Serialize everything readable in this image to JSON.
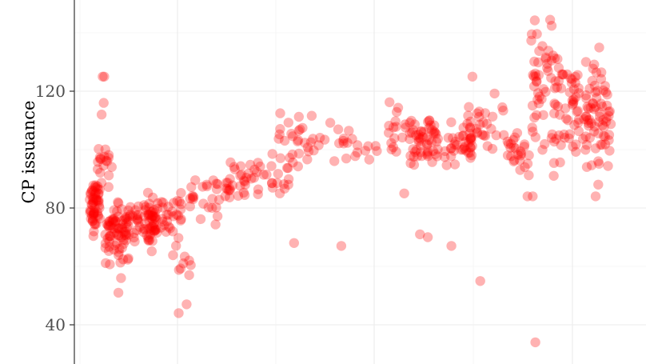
{
  "chart_data": {
    "type": "scatter",
    "title": "",
    "xlabel": "",
    "ylabel": "CP issuance",
    "ylim": [
      28,
      150
    ],
    "xlim": [
      0,
      100
    ],
    "y_ticks": [
      40,
      80,
      120
    ],
    "grid": true,
    "point_color": "#ff0000",
    "point_opacity": 0.3,
    "series": [
      {
        "name": "CP issuance",
        "clusters": [
          {
            "x": [
              0.0,
              2.0
            ],
            "y": [
              69,
              92
            ],
            "n": 55
          },
          {
            "x": [
              1.5,
              4.5
            ],
            "y": [
              84,
              107
            ],
            "n": 18
          },
          {
            "x": [
              3.0,
              7.5
            ],
            "y": [
              58,
              86
            ],
            "n": 70
          },
          {
            "x": [
              6.5,
              12.5
            ],
            "y": [
              63,
              86
            ],
            "n": 45
          },
          {
            "x": [
              10.5,
              17.5
            ],
            "y": [
              62,
              90
            ],
            "n": 60
          },
          {
            "x": [
              16.5,
              19.5
            ],
            "y": [
              56,
              64
            ],
            "n": 5
          },
          {
            "x": [
              19.0,
              27.0
            ],
            "y": [
              72,
              96
            ],
            "n": 30
          },
          {
            "x": [
              26.0,
              38.0
            ],
            "y": [
              80,
              100
            ],
            "n": 45
          },
          {
            "x": [
              36.0,
              43.0
            ],
            "y": [
              85,
              117
            ],
            "n": 28
          },
          {
            "x": [
              43.5,
              55.0
            ],
            "y": [
              91,
              114
            ],
            "n": 22
          },
          {
            "x": [
              57.0,
              60.5
            ],
            "y": [
              92,
              120
            ],
            "n": 16
          },
          {
            "x": [
              61.0,
              66.5
            ],
            "y": [
              92,
              114
            ],
            "n": 55
          },
          {
            "x": [
              67.5,
              73.0
            ],
            "y": [
              92,
              112
            ],
            "n": 35
          },
          {
            "x": [
              72.0,
              79.0
            ],
            "y": [
              95,
              124
            ],
            "n": 30
          },
          {
            "x": [
              79.5,
              84.0
            ],
            "y": [
              84,
              112
            ],
            "n": 25
          },
          {
            "x": [
              83.5,
              88.5
            ],
            "y": [
              92,
              150
            ],
            "n": 45
          },
          {
            "x": [
              88.5,
              93.5
            ],
            "y": [
              88,
              145
            ],
            "n": 55
          },
          {
            "x": [
              94.0,
              99.5
            ],
            "y": [
              84,
              140
            ],
            "n": 70
          }
        ],
        "points": [
          {
            "x": 2.5,
            "y": 125
          },
          {
            "x": 2.8,
            "y": 125
          },
          {
            "x": 2.7,
            "y": 116
          },
          {
            "x": 2.3,
            "y": 112
          },
          {
            "x": 5.5,
            "y": 51
          },
          {
            "x": 6.0,
            "y": 56
          },
          {
            "x": 17.0,
            "y": 44
          },
          {
            "x": 18.5,
            "y": 47
          },
          {
            "x": 19.0,
            "y": 57
          },
          {
            "x": 19.0,
            "y": 62
          },
          {
            "x": 39.0,
            "y": 68
          },
          {
            "x": 48.0,
            "y": 67
          },
          {
            "x": 60.0,
            "y": 85
          },
          {
            "x": 63.0,
            "y": 71
          },
          {
            "x": 64.5,
            "y": 70
          },
          {
            "x": 69.0,
            "y": 67
          },
          {
            "x": 73.0,
            "y": 125
          },
          {
            "x": 74.5,
            "y": 55
          },
          {
            "x": 79.0,
            "y": 105
          },
          {
            "x": 83.5,
            "y": 84
          },
          {
            "x": 84.5,
            "y": 84
          },
          {
            "x": 85.0,
            "y": 34
          },
          {
            "x": 88.5,
            "y": 91
          },
          {
            "x": 96.5,
            "y": 84
          },
          {
            "x": 97.0,
            "y": 88
          },
          {
            "x": 97.0,
            "y": 96
          }
        ]
      }
    ]
  }
}
